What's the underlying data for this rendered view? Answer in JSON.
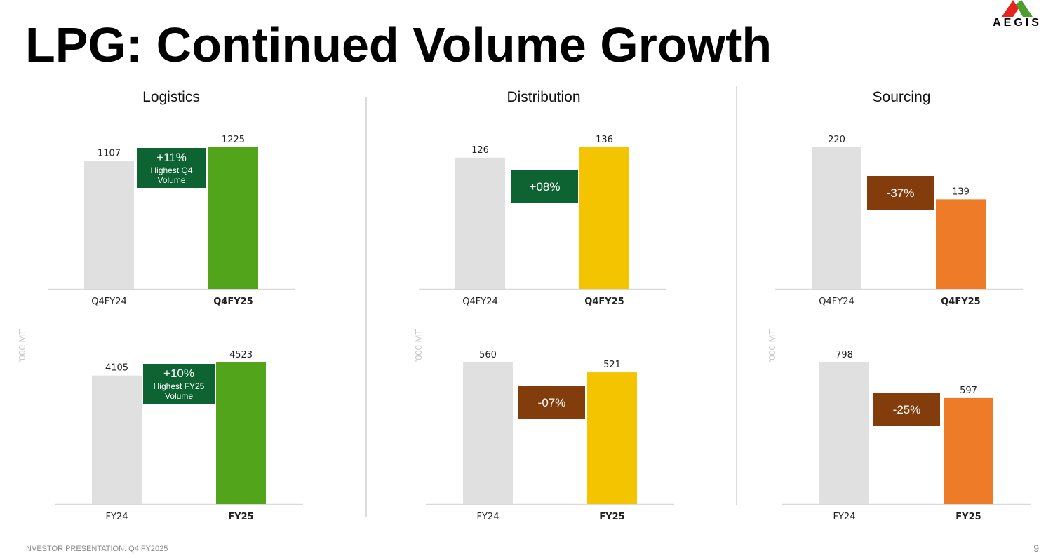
{
  "page": {
    "title": "LPG: Continued Volume Growth",
    "logo_text": "AEGIS",
    "footer": "INVESTOR PRESENTATION: Q4 FY2025",
    "page_number": "9",
    "colors": {
      "baseline_bar": "#e0e0e0",
      "green_bar": "#52a51a",
      "yellow_bar": "#f5c400",
      "orange_bar": "#ee7b27",
      "growth_box": "#0d6432",
      "decline_box": "#833d0d",
      "logo_red": "#e8231f",
      "logo_green": "#4a9f2d"
    }
  },
  "columns": [
    {
      "title": "Logistics"
    },
    {
      "title": "Distribution"
    },
    {
      "title": "Sourcing"
    }
  ],
  "chart_data": [
    {
      "type": "bar",
      "segment": "Logistics",
      "period": "quarter",
      "categories": [
        "Q4FY24",
        "Q4FY25"
      ],
      "values": [
        1107,
        1225
      ],
      "ylim": [
        0,
        1225
      ],
      "change": "+11%",
      "note": "Highest Q4\nVolume",
      "bar_color": "#52a51a",
      "box_color": "#0d6432",
      "ylabel": ""
    },
    {
      "type": "bar",
      "segment": "Distribution",
      "period": "quarter",
      "categories": [
        "Q4FY24",
        "Q4FY25"
      ],
      "values": [
        126,
        136
      ],
      "ylim": [
        0,
        136
      ],
      "change": "+08%",
      "note": "",
      "bar_color": "#f5c400",
      "box_color": "#0d6432",
      "ylabel": ""
    },
    {
      "type": "bar",
      "segment": "Sourcing",
      "period": "quarter",
      "categories": [
        "Q4FY24",
        "Q4FY25"
      ],
      "values": [
        220,
        139
      ],
      "ylim": [
        0,
        220
      ],
      "change": "-37%",
      "note": "",
      "bar_color": "#ee7b27",
      "box_color": "#833d0d",
      "ylabel": ""
    },
    {
      "type": "bar",
      "segment": "Logistics",
      "period": "year",
      "categories": [
        "FY24",
        "FY25"
      ],
      "values": [
        4105,
        4523
      ],
      "ylim": [
        0,
        4523
      ],
      "change": "+10%",
      "note": "Highest FY25\nVolume",
      "bar_color": "#52a51a",
      "box_color": "#0d6432",
      "ylabel": "'000 MT"
    },
    {
      "type": "bar",
      "segment": "Distribution",
      "period": "year",
      "categories": [
        "FY24",
        "FY25"
      ],
      "values": [
        560,
        521
      ],
      "ylim": [
        0,
        560
      ],
      "change": "-07%",
      "note": "",
      "bar_color": "#f5c400",
      "box_color": "#833d0d",
      "ylabel": "'000 MT"
    },
    {
      "type": "bar",
      "segment": "Sourcing",
      "period": "year",
      "categories": [
        "FY24",
        "FY25"
      ],
      "values": [
        798,
        597
      ],
      "ylim": [
        0,
        798
      ],
      "change": "-25%",
      "note": "",
      "bar_color": "#ee7b27",
      "box_color": "#833d0d",
      "ylabel": "'000 MT"
    }
  ]
}
